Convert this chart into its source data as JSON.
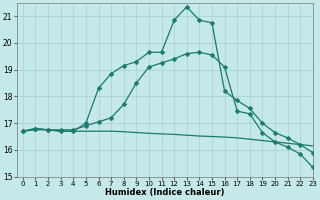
{
  "xlabel": "Humidex (Indice chaleur)",
  "background_color": "#c5e8e8",
  "grid_color": "#a8d0d0",
  "line_color": "#1a7a6e",
  "xlim": [
    -0.5,
    23
  ],
  "ylim": [
    15,
    21.5
  ],
  "yticks": [
    15,
    16,
    17,
    18,
    19,
    20,
    21
  ],
  "xticks": [
    0,
    1,
    2,
    3,
    4,
    5,
    6,
    7,
    8,
    9,
    10,
    11,
    12,
    13,
    14,
    15,
    16,
    17,
    18,
    19,
    20,
    21,
    22,
    23
  ],
  "line1_x": [
    0,
    1,
    2,
    3,
    4,
    5,
    6,
    7,
    8,
    9,
    10,
    11,
    12,
    13,
    14,
    15,
    16,
    17,
    18,
    19,
    20,
    21,
    22,
    23
  ],
  "line1_y": [
    16.7,
    16.8,
    16.75,
    16.7,
    16.7,
    17.0,
    18.3,
    18.85,
    19.15,
    19.3,
    19.65,
    19.65,
    20.85,
    21.35,
    20.85,
    20.75,
    18.2,
    17.85,
    17.55,
    17.0,
    16.65,
    16.45,
    16.2,
    15.9
  ],
  "line2_x": [
    0,
    1,
    2,
    3,
    4,
    5,
    6,
    7,
    8,
    9,
    10,
    11,
    12,
    13,
    14,
    15,
    16,
    17,
    18,
    19,
    20,
    21,
    22,
    23
  ],
  "line2_y": [
    16.7,
    16.8,
    16.75,
    16.75,
    16.75,
    16.9,
    17.05,
    17.2,
    17.7,
    18.5,
    19.1,
    19.25,
    19.4,
    19.6,
    19.65,
    19.55,
    19.1,
    17.45,
    17.35,
    16.65,
    16.3,
    16.1,
    15.85,
    15.35
  ],
  "line3_x": [
    0,
    1,
    2,
    3,
    4,
    5,
    6,
    7,
    8,
    9,
    10,
    11,
    12,
    13,
    14,
    15,
    16,
    17,
    18,
    19,
    20,
    21,
    22,
    23
  ],
  "line3_y": [
    16.7,
    16.75,
    16.75,
    16.7,
    16.7,
    16.7,
    16.7,
    16.7,
    16.68,
    16.65,
    16.62,
    16.6,
    16.58,
    16.55,
    16.52,
    16.5,
    16.48,
    16.45,
    16.4,
    16.35,
    16.3,
    16.25,
    16.2,
    16.15
  ]
}
